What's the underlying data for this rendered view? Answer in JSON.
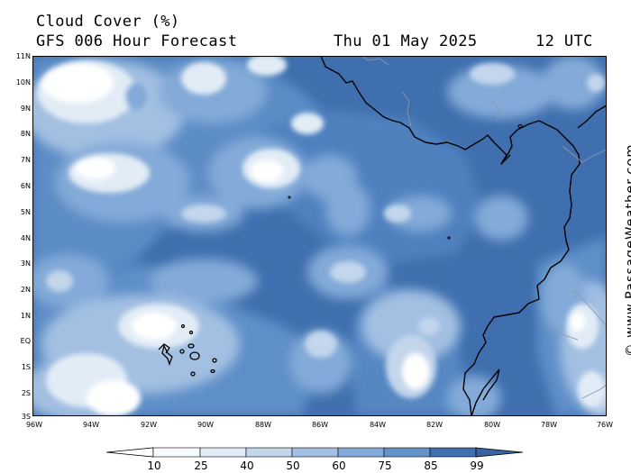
{
  "header": {
    "title": "Cloud Cover (%)",
    "model": "GFS 006 Hour Forecast",
    "date": "Thu 01 May 2025",
    "utc": "12 UTC"
  },
  "credit": "© www.PassageWeather.com",
  "axes": {
    "lat_labels": [
      "11N",
      "10N",
      "9N",
      "8N",
      "7N",
      "6N",
      "5N",
      "4N",
      "3N",
      "2N",
      "1N",
      "EQ",
      "1S",
      "2S",
      "3S"
    ],
    "lon_labels": [
      "96W",
      "94W",
      "92W",
      "90W",
      "88W",
      "86W",
      "84W",
      "82W",
      "80W",
      "78W",
      "76W"
    ],
    "lat_range": [
      -3,
      11
    ],
    "lon_range": [
      -96,
      -76
    ]
  },
  "legend": {
    "ticks": [
      "10",
      "25",
      "40",
      "50",
      "60",
      "75",
      "85",
      "99"
    ],
    "colors": [
      "#f7fbff",
      "#e2ecf6",
      "#c3d6ec",
      "#a3c0e2",
      "#83aad8",
      "#6393ca",
      "#3f6fae"
    ]
  },
  "colors": {
    "ocean_base": "#3f6fae",
    "land_base": "#3d6aaa",
    "coast": "#000000",
    "border": "#8c96a6"
  }
}
